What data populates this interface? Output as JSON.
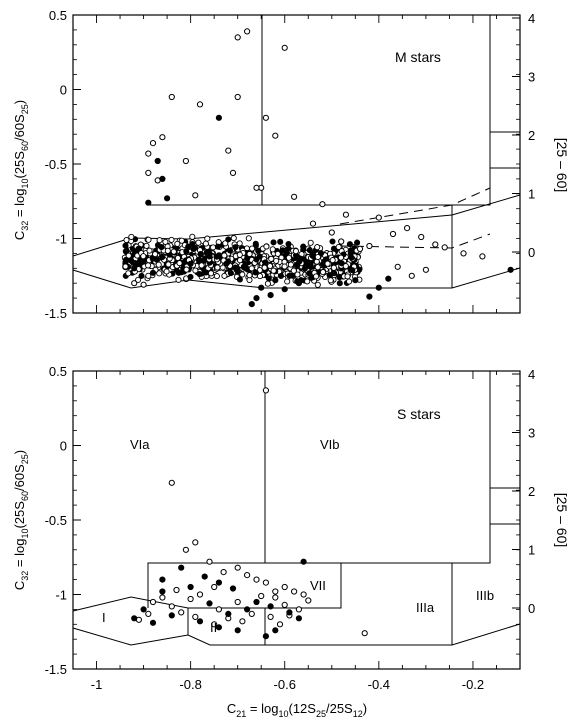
{
  "chart_data": [
    {
      "type": "scatter",
      "title": "",
      "annotation": "M stars",
      "ylabel_parts": {
        "pre": "C",
        "sub": "32",
        "eq": " = log",
        "logsub": "10",
        "arg_open": "(25S",
        "s60": "60",
        "mid": "/60S",
        "s25": "25",
        "close": ")"
      },
      "ylabel_right": "[25 – 60]",
      "xlim": [
        -1.05,
        -0.1
      ],
      "ylim": [
        -1.5,
        0.5
      ],
      "y_ticks": [
        "0.5",
        "0",
        "-0.5",
        "-1",
        "-1.5"
      ],
      "y_tick_values": [
        0.5,
        0,
        -0.5,
        -1,
        -1.5
      ],
      "right_ticks": [
        "4",
        "3",
        "2",
        "1",
        "0"
      ],
      "right_tick_values": [
        4,
        3,
        2,
        1,
        0
      ],
      "series": [
        {
          "filled": false,
          "points": [
            [
              -0.68,
              0.39
            ],
            [
              -0.7,
              0.35
            ],
            [
              -0.6,
              0.28
            ],
            [
              -0.84,
              -0.05
            ],
            [
              -0.7,
              -0.05
            ],
            [
              -0.78,
              -0.1
            ],
            [
              -0.64,
              -0.19
            ],
            [
              -0.62,
              -0.31
            ],
            [
              -0.86,
              -0.32
            ],
            [
              -0.88,
              -0.36
            ],
            [
              -0.72,
              -0.41
            ],
            [
              -0.89,
              -0.43
            ],
            [
              -0.81,
              -0.48
            ],
            [
              -0.89,
              -0.56
            ],
            [
              -0.71,
              -0.56
            ],
            [
              -0.87,
              -0.61
            ],
            [
              -0.65,
              -0.66
            ],
            [
              -0.66,
              -0.66
            ],
            [
              -0.79,
              -0.71
            ],
            [
              -0.58,
              -0.72
            ],
            [
              -0.52,
              -0.77
            ],
            [
              -0.47,
              -0.84
            ],
            [
              -0.4,
              -0.86
            ],
            [
              -0.34,
              -0.93
            ],
            [
              -0.37,
              -0.97
            ],
            [
              -0.31,
              -0.99
            ],
            [
              -0.28,
              -1.04
            ],
            [
              -0.26,
              -1.06
            ],
            [
              -0.22,
              -1.1
            ],
            [
              -0.18,
              -1.12
            ],
            [
              -0.42,
              -1.05
            ],
            [
              -0.44,
              -1.07
            ],
            [
              -0.48,
              -1.02
            ],
            [
              -0.5,
              -0.96
            ],
            [
              -0.54,
              -0.9
            ],
            [
              -0.92,
              -1.3
            ],
            [
              -0.9,
              -1.31
            ],
            [
              -0.3,
              -1.21
            ],
            [
              -0.33,
              -1.25
            ],
            [
              -0.36,
              -1.19
            ]
          ]
        },
        {
          "filled": true,
          "points": [
            [
              -0.74,
              -0.19
            ],
            [
              -0.87,
              -0.48
            ],
            [
              -0.89,
              -0.76
            ],
            [
              -0.85,
              -0.73
            ],
            [
              -0.86,
              -0.6
            ],
            [
              -0.67,
              -1.44
            ],
            [
              -0.66,
              -1.4
            ],
            [
              -0.65,
              -1.33
            ],
            [
              -0.63,
              -1.38
            ],
            [
              -0.62,
              -1.28
            ],
            [
              -0.6,
              -1.34
            ],
            [
              -0.59,
              -1.25
            ],
            [
              -0.57,
              -1.3
            ],
            [
              -0.45,
              -1.28
            ],
            [
              -0.42,
              -1.39
            ],
            [
              -0.4,
              -1.33
            ],
            [
              -0.38,
              -1.27
            ],
            [
              -0.12,
              -1.21
            ],
            [
              -0.92,
              -1.2
            ],
            [
              -0.88,
              -1.23
            ],
            [
              -0.8,
              -1.17
            ],
            [
              -0.76,
              -1.12
            ],
            [
              -0.7,
              -1.22
            ],
            [
              -0.66,
              -1.14
            ]
          ]
        }
      ],
      "cloud": {
        "x_range": [
          -0.94,
          -0.44
        ],
        "y_center": -1.15,
        "y_spread": 0.11,
        "count": 900
      }
    },
    {
      "type": "scatter",
      "title": "",
      "annotation": "S stars",
      "xlabel_parts": {
        "pre": "C",
        "sub": "21",
        "eq": " = log",
        "logsub": "10",
        "arg_open": "(12S",
        "s25": "25",
        "mid": "/25S",
        "s12": "12",
        "close": ")"
      },
      "ylabel_parts": {
        "pre": "C",
        "sub": "32",
        "eq": " = log",
        "logsub": "10",
        "arg_open": "(25S",
        "s60": "60",
        "mid": "/60S",
        "s25": "25",
        "close": ")"
      },
      "ylabel_right": "[25 – 60]",
      "xlim": [
        -1.05,
        -0.1
      ],
      "ylim": [
        -1.5,
        0.5
      ],
      "x_ticks": [
        "-1",
        "-0.8",
        "-0.6",
        "-0.4",
        "-0.2"
      ],
      "x_tick_values": [
        -1,
        -0.8,
        -0.6,
        -0.4,
        -0.2
      ],
      "y_ticks": [
        "0.5",
        "0",
        "-0.5",
        "-1",
        "-1.5"
      ],
      "y_tick_values": [
        0.5,
        0,
        -0.5,
        -1,
        -1.5
      ],
      "right_ticks": [
        "4",
        "3",
        "2",
        "1",
        "0"
      ],
      "right_tick_values": [
        4,
        3,
        2,
        1,
        0
      ],
      "regions": {
        "I": "I",
        "II": "II",
        "IIIa": "IIIa",
        "IIIb": "IIIb",
        "VIa": "VIa",
        "VIb": "VIb",
        "VII": "VII"
      },
      "series": [
        {
          "filled": false,
          "points": [
            [
              -0.64,
              0.37
            ],
            [
              -0.84,
              -0.25
            ],
            [
              -0.79,
              -0.65
            ],
            [
              -0.81,
              -0.7
            ],
            [
              -0.76,
              -0.78
            ],
            [
              -0.7,
              -0.82
            ],
            [
              -0.73,
              -0.85
            ],
            [
              -0.68,
              -0.87
            ],
            [
              -0.66,
              -0.9
            ],
            [
              -0.64,
              -0.92
            ],
            [
              -0.6,
              -0.95
            ],
            [
              -0.58,
              -0.98
            ],
            [
              -0.56,
              -1.0
            ],
            [
              -0.62,
              -1.02
            ],
            [
              -0.55,
              -1.04
            ],
            [
              -0.6,
              -1.07
            ],
            [
              -0.75,
              -0.95
            ],
            [
              -0.78,
              -1.0
            ],
            [
              -0.8,
              -1.03
            ],
            [
              -0.83,
              -0.97
            ],
            [
              -0.86,
              -1.02
            ],
            [
              -0.88,
              -1.05
            ],
            [
              -0.84,
              -1.08
            ],
            [
              -0.82,
              -1.12
            ],
            [
              -0.79,
              -1.15
            ],
            [
              -0.74,
              -1.1
            ],
            [
              -0.72,
              -1.16
            ],
            [
              -0.69,
              -1.18
            ],
            [
              -0.67,
              -1.13
            ],
            [
              -0.63,
              -1.15
            ],
            [
              -0.61,
              -1.2
            ],
            [
              -0.59,
              -1.14
            ],
            [
              -0.57,
              -1.1
            ],
            [
              -0.91,
              -1.17
            ],
            [
              -0.89,
              -1.13
            ],
            [
              -0.75,
              -1.2
            ],
            [
              -0.7,
              -1.05
            ],
            [
              -0.65,
              -1.01
            ],
            [
              -0.62,
              -0.98
            ],
            [
              -0.43,
              -1.26
            ]
          ]
        },
        {
          "filled": true,
          "points": [
            [
              -0.56,
              -0.78
            ],
            [
              -0.82,
              -0.82
            ],
            [
              -0.77,
              -0.88
            ],
            [
              -0.74,
              -0.92
            ],
            [
              -0.71,
              -0.96
            ],
            [
              -0.86,
              -0.9
            ],
            [
              -0.8,
              -0.95
            ],
            [
              -0.66,
              -1.05
            ],
            [
              -0.63,
              -1.08
            ],
            [
              -0.59,
              -1.12
            ],
            [
              -0.57,
              -1.16
            ],
            [
              -0.68,
              -1.1
            ],
            [
              -0.72,
              -1.13
            ],
            [
              -0.76,
              -1.06
            ],
            [
              -0.9,
              -1.1
            ],
            [
              -0.92,
              -1.16
            ],
            [
              -0.88,
              -1.19
            ],
            [
              -0.62,
              -1.24
            ],
            [
              -0.64,
              -1.28
            ],
            [
              -0.74,
              -1.22
            ],
            [
              -0.7,
              -1.24
            ],
            [
              -0.78,
              -1.18
            ],
            [
              -0.84,
              -1.14
            ],
            [
              -0.86,
              -0.98
            ]
          ]
        }
      ]
    }
  ]
}
